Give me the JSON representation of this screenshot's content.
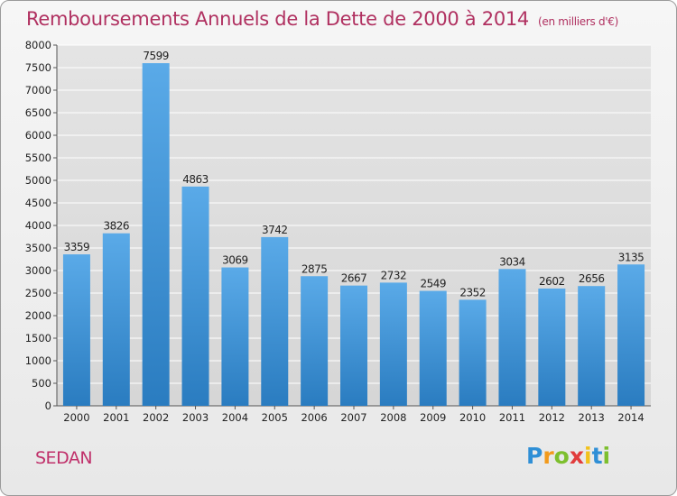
{
  "header": {
    "title": "Remboursements Annuels de la Dette de 2000 à 2014",
    "unit": "(en milliers d'€)"
  },
  "footer": {
    "commune": "SEDAN",
    "logo_letters": [
      "P",
      "r",
      "o",
      "x",
      "i",
      "t",
      "i"
    ]
  },
  "colors": {
    "bar_top": "#5aaae8",
    "bar_bottom": "#2a7cc0",
    "title": "#b03060",
    "grid": "#ffffff"
  },
  "chart_data": {
    "type": "bar",
    "categories": [
      "2000",
      "2001",
      "2002",
      "2003",
      "2004",
      "2005",
      "2006",
      "2007",
      "2008",
      "2009",
      "2010",
      "2011",
      "2012",
      "2013",
      "2014"
    ],
    "series": [
      {
        "values": [
          3359,
          3826,
          7599,
          4863,
          3069,
          3742,
          2875,
          2667,
          2732,
          2549,
          2352,
          3034,
          2602,
          2656,
          3135
        ]
      }
    ],
    "ylim": [
      0,
      8000
    ],
    "yticks": [
      0,
      500,
      1000,
      1500,
      2000,
      2500,
      3000,
      3500,
      4000,
      4500,
      5000,
      5500,
      6000,
      6500,
      7000,
      7500,
      8000
    ],
    "grid": true,
    "data_labels": true
  }
}
